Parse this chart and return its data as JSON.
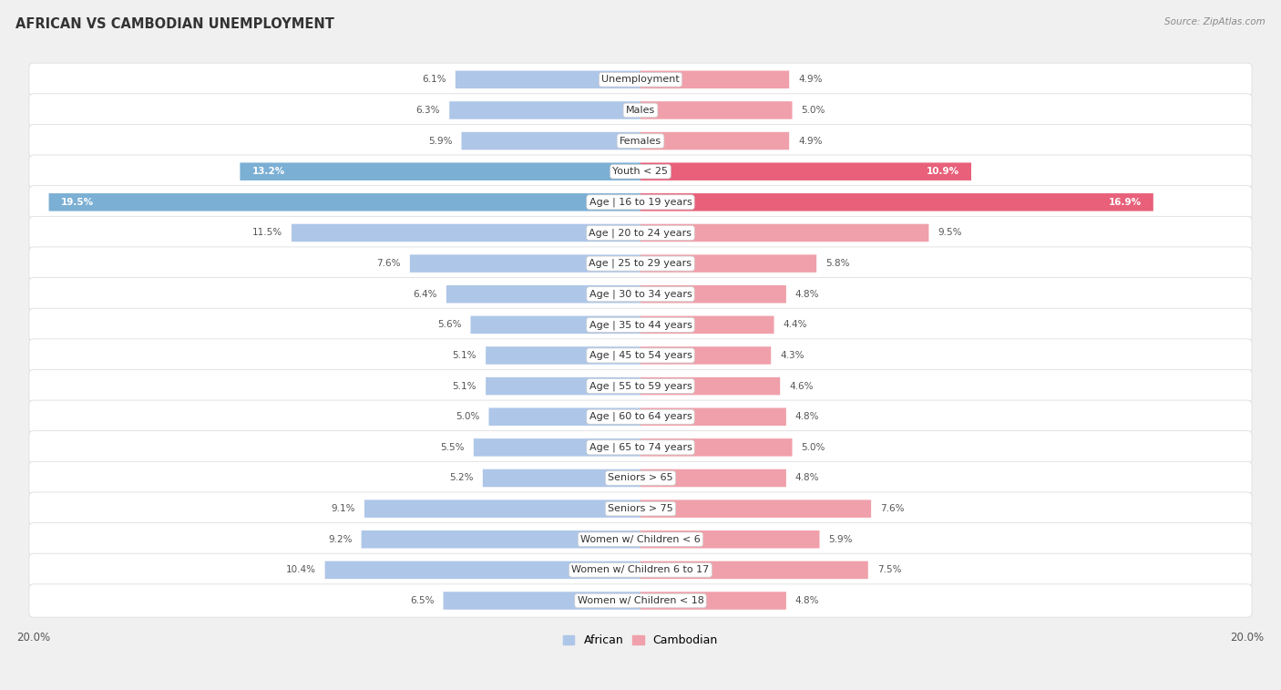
{
  "title": "AFRICAN VS CAMBODIAN UNEMPLOYMENT",
  "source": "Source: ZipAtlas.com",
  "categories": [
    "Unemployment",
    "Males",
    "Females",
    "Youth < 25",
    "Age | 16 to 19 years",
    "Age | 20 to 24 years",
    "Age | 25 to 29 years",
    "Age | 30 to 34 years",
    "Age | 35 to 44 years",
    "Age | 45 to 54 years",
    "Age | 55 to 59 years",
    "Age | 60 to 64 years",
    "Age | 65 to 74 years",
    "Seniors > 65",
    "Seniors > 75",
    "Women w/ Children < 6",
    "Women w/ Children 6 to 17",
    "Women w/ Children < 18"
  ],
  "african": [
    6.1,
    6.3,
    5.9,
    13.2,
    19.5,
    11.5,
    7.6,
    6.4,
    5.6,
    5.1,
    5.1,
    5.0,
    5.5,
    5.2,
    9.1,
    9.2,
    10.4,
    6.5
  ],
  "cambodian": [
    4.9,
    5.0,
    4.9,
    10.9,
    16.9,
    9.5,
    5.8,
    4.8,
    4.4,
    4.3,
    4.6,
    4.8,
    5.0,
    4.8,
    7.6,
    5.9,
    7.5,
    4.8
  ],
  "african_color": "#aec6e8",
  "cambodian_color": "#f0a0aa",
  "african_highlight_color": "#7bafd4",
  "cambodian_highlight_color": "#e8607a",
  "row_bg": "#f0f0f0",
  "card_bg": "#ffffff",
  "card_outline": "#d8d8d8",
  "max_val": 20.0,
  "legend_african": "African",
  "legend_cambodian": "Cambodian",
  "label_fontsize": 8.0,
  "value_fontsize": 7.5,
  "title_fontsize": 10.5,
  "source_fontsize": 7.5
}
